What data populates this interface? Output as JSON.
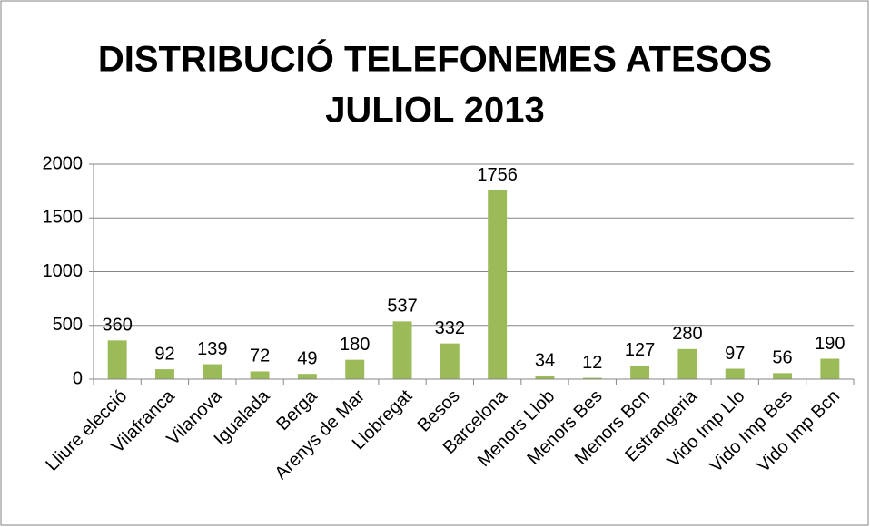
{
  "chart_data": {
    "type": "bar",
    "title": [
      "DISTRIBUCIÓ TELEFONEMES ATESOS",
      "JULIOL 2013"
    ],
    "categories": [
      "Lliure elecció",
      "Vilafranca",
      "Vilanova",
      "Igualada",
      "Berga",
      "Arenys de Mar",
      "Llobregat",
      "Besos",
      "Barcelona",
      "Menors Llob",
      "Menors Bes",
      "Menors Bcn",
      "Estrangeria",
      "Vido Imp Llo",
      "Vido Imp Bes",
      "Vido Imp Bcn"
    ],
    "values": [
      360,
      92,
      139,
      72,
      49,
      180,
      537,
      332,
      1756,
      34,
      12,
      127,
      280,
      97,
      56,
      190
    ],
    "color": "#9bbb59",
    "ylim": [
      0,
      2000
    ],
    "yticks": [
      0,
      500,
      1000,
      1500,
      2000
    ],
    "grid": true
  }
}
